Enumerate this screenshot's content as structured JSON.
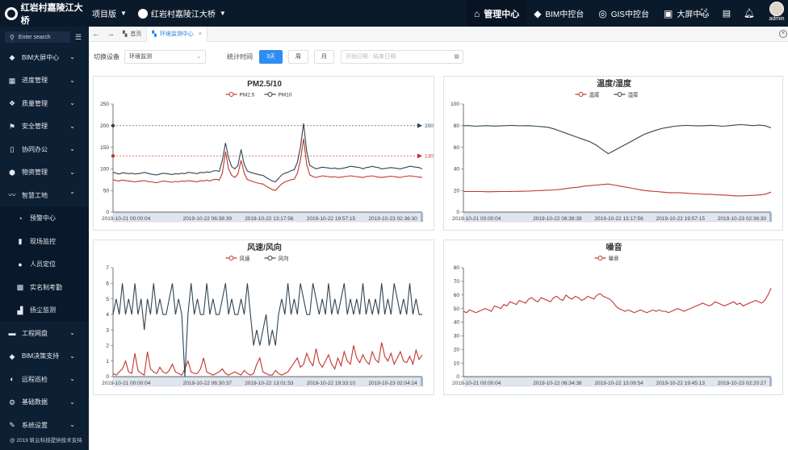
{
  "app": {
    "brand": "红岩村嘉陵江大桥",
    "project_switch": "项目版",
    "project_name": "红岩村嘉陵江大桥"
  },
  "nav": [
    {
      "label": "管理中心",
      "icon": "home-icon",
      "active": true
    },
    {
      "label": "BIM中控台",
      "icon": "cube-icon",
      "active": false
    },
    {
      "label": "GIS中控台",
      "icon": "globe-icon",
      "active": false
    },
    {
      "label": "大屏中心",
      "icon": "chart-screen-icon",
      "active": false
    }
  ],
  "user": {
    "name": "admin"
  },
  "sidebar": {
    "search_placeholder": "Enter search",
    "items": [
      {
        "label": "BIM大屏中心",
        "icon": "cube-icon",
        "expanded": false
      },
      {
        "label": "进度管理",
        "icon": "grid-icon",
        "expanded": false
      },
      {
        "label": "质量管理",
        "icon": "quality-icon",
        "expanded": false
      },
      {
        "label": "安全管理",
        "icon": "flag-icon",
        "expanded": false
      },
      {
        "label": "协同办公",
        "icon": "document-icon",
        "expanded": false
      },
      {
        "label": "物资管理",
        "icon": "material-icon",
        "expanded": false
      },
      {
        "label": "智慧工地",
        "icon": "pulse-icon",
        "expanded": true
      }
    ],
    "sub_items": [
      {
        "label": "预警中心",
        "icon": "alarm-icon"
      },
      {
        "label": "现场监控",
        "icon": "monitor-icon"
      },
      {
        "label": "人员定位",
        "icon": "person-icon"
      },
      {
        "label": "实名制考勤",
        "icon": "id-card-icon"
      },
      {
        "label": "扬尘监测",
        "icon": "dust-icon"
      }
    ],
    "items_after": [
      {
        "label": "工程网盘",
        "icon": "folder-icon"
      },
      {
        "label": "BIM决策支持",
        "icon": "cube-icon"
      },
      {
        "label": "远程巡检",
        "icon": "half-circle-icon"
      },
      {
        "label": "基础数据",
        "icon": "gear-icon"
      },
      {
        "label": "系统设置",
        "icon": "pencil-icon"
      }
    ],
    "copyright": "@ 2019 筑云科技提供技术支持"
  },
  "tabs": [
    {
      "label": "首页",
      "active": false
    },
    {
      "label": "环境监测中心",
      "active": true
    }
  ],
  "filters": {
    "device_label": "切换设备",
    "device_value": "环境监测",
    "period_label": "统计时间",
    "period_buttons": [
      "3天",
      "周",
      "月"
    ],
    "period_active": "3天",
    "date_placeholder": "开始日期 - 结束日期"
  },
  "chart_data": [
    {
      "type": "line",
      "title": "PM2.5/10",
      "series": [
        {
          "name": "PM2.5",
          "color": "#c23531",
          "values": [
            75,
            73,
            72,
            74,
            73,
            72,
            71,
            70,
            71,
            72,
            73,
            71,
            70,
            69,
            68,
            70,
            72,
            71,
            70,
            69,
            71,
            70,
            72,
            71,
            73,
            72,
            71,
            70,
            73,
            72,
            74,
            72,
            75,
            76,
            74,
            90,
            140,
            100,
            85,
            80,
            88,
            120,
            90,
            75,
            73,
            70,
            68,
            66,
            65,
            60,
            56,
            52,
            50,
            58,
            65,
            70,
            72,
            75,
            76,
            90,
            120,
            170,
            110,
            86,
            82,
            80,
            82,
            84,
            83,
            82,
            81,
            82,
            80,
            81,
            82,
            83,
            84,
            83,
            82,
            81,
            80,
            82,
            83,
            84,
            82,
            81,
            80,
            81,
            82,
            83,
            82,
            81,
            80,
            82,
            83,
            84,
            83,
            82,
            81,
            80
          ]
        },
        {
          "name": "PM10",
          "color": "#2f4554",
          "values": [
            92,
            90,
            88,
            91,
            90,
            89,
            90,
            88,
            89,
            90,
            92,
            90,
            88,
            87,
            86,
            88,
            90,
            89,
            88,
            87,
            89,
            88,
            90,
            89,
            92,
            91,
            90,
            89,
            92,
            91,
            93,
            92,
            95,
            96,
            94,
            120,
            160,
            125,
            105,
            100,
            108,
            145,
            110,
            95,
            92,
            90,
            88,
            86,
            85,
            80,
            76,
            72,
            70,
            78,
            86,
            90,
            92,
            96,
            98,
            115,
            150,
            205,
            140,
            108,
            104,
            100,
            102,
            104,
            103,
            102,
            101,
            102,
            100,
            101,
            102,
            104,
            106,
            105,
            104,
            103,
            100,
            103,
            104,
            106,
            104,
            103,
            100,
            101,
            102,
            103,
            102,
            101,
            100,
            102,
            104,
            106,
            105,
            104,
            103,
            100
          ]
        }
      ],
      "x_ticks": [
        "2019-10-21 00:00:04",
        "2019-10-22 06:38:39",
        "2019-10-22 13:17:56",
        "2019-10-22 19:57:15",
        "2019-10-23 02:36:30"
      ],
      "ylim": [
        0,
        250
      ],
      "y_ticks": [
        0,
        50,
        100,
        150,
        200,
        250
      ],
      "mark_lines": [
        {
          "value": 200,
          "color": "#2f4554"
        },
        {
          "value": 130,
          "color": "#c23531"
        }
      ],
      "legend": "top-center",
      "data_zoom": true
    },
    {
      "type": "line",
      "title": "温度/湿度",
      "series": [
        {
          "name": "温度",
          "color": "#c23531",
          "values": [
            19,
            19,
            19,
            19,
            18.8,
            18.9,
            19,
            19,
            19.1,
            19.2,
            19.3,
            19.5,
            19.8,
            20,
            20.3,
            20.5,
            21,
            21.8,
            22.5,
            23,
            24,
            24.5,
            25,
            25.5,
            26,
            25,
            24,
            23,
            22,
            21,
            20,
            19.5,
            19,
            18.5,
            18,
            18,
            17.8,
            17.5,
            17,
            16.8,
            16.5,
            16.5,
            16,
            15.8,
            15.5,
            15,
            15,
            15.2,
            15.5,
            15.8,
            16.5,
            18.5
          ]
        },
        {
          "name": "湿度",
          "color": "#2f4554",
          "values": [
            80,
            80,
            79.5,
            79.8,
            80,
            79.6,
            79.8,
            80,
            80.2,
            80,
            79.9,
            80,
            79.5,
            79,
            78.5,
            77,
            75,
            73,
            71,
            69,
            67,
            65,
            62,
            58,
            54,
            57,
            60,
            63,
            66,
            69,
            72,
            74,
            76,
            77.5,
            78.5,
            79.5,
            80,
            80.2,
            80,
            79.8,
            80,
            80.3,
            80,
            79.5,
            80,
            80.5,
            81,
            80.5,
            80,
            80.5,
            80,
            78
          ]
        }
      ],
      "x_ticks": [
        "2019-10-21 00:00:04",
        "2019-10-22 06:38:39",
        "2019-10-22 13:17:56",
        "2019-10-22 19:57:15",
        "2019-10-23 02:36:30"
      ],
      "ylim": [
        0,
        100
      ],
      "y_ticks": [
        0,
        20,
        40,
        60,
        80,
        100
      ],
      "legend": "top-center",
      "data_zoom": true
    },
    {
      "type": "line",
      "title": "风速/风向",
      "series": [
        {
          "name": "风速",
          "color": "#c23531",
          "values": [
            0.2,
            0.1,
            0.3,
            0.5,
            1.0,
            0.3,
            0.2,
            1.5,
            0.4,
            0.2,
            0.1,
            1.6,
            0.5,
            0.3,
            0.2,
            0.6,
            0.3,
            0.2,
            0.4,
            0.8,
            0.3,
            0.2,
            0.1,
            0.5,
            1.0,
            0.3,
            0.2,
            0.2,
            0.5,
            1.2,
            0.3,
            0.2,
            0.1,
            0.2,
            0.3,
            0.5,
            0.2,
            0.1,
            0.2,
            0.3,
            0.2,
            0.1,
            0.4,
            0.2,
            0.1,
            0.2,
            0.8,
            1.2,
            0.3,
            0.2,
            0.1,
            0.1,
            0.4,
            0.2,
            0.1,
            0.2,
            0.3,
            0.6,
            0.9,
            1.2,
            0.6,
            0.8,
            1.5,
            1.0,
            0.7,
            1.8,
            0.9,
            0.6,
            1.0,
            1.4,
            0.8,
            0.5,
            1.2,
            0.7,
            1.6,
            1.0,
            0.8,
            2.0,
            1.2,
            0.9,
            1.4,
            1.0,
            0.8,
            1.6,
            1.1,
            0.9,
            2.2,
            1.3,
            1.0,
            1.5,
            0.8,
            1.2,
            1.6,
            1.0,
            0.9,
            1.3,
            0.8,
            1.7,
            1.1,
            1.4
          ]
        },
        {
          "name": "风向",
          "color": "#2f4554",
          "values": [
            4,
            5,
            4,
            6,
            4,
            5,
            4,
            6,
            4,
            5,
            3,
            5,
            4,
            6,
            4,
            5,
            4,
            4,
            5,
            6,
            4,
            5,
            4,
            0,
            4,
            6,
            4,
            5,
            4,
            4,
            6,
            4,
            5,
            4,
            4,
            5,
            6,
            4,
            5,
            4,
            4,
            5,
            4,
            6,
            4,
            2,
            3,
            2,
            3,
            4,
            2,
            3,
            2,
            4,
            5,
            4,
            6,
            4,
            5,
            4,
            6,
            5,
            4,
            4,
            6,
            5,
            4,
            5,
            4,
            6,
            4,
            5,
            4,
            5,
            6,
            4,
            5,
            4,
            5,
            4,
            6,
            4,
            5,
            4,
            5,
            4,
            6,
            4,
            5,
            4,
            6,
            5,
            4,
            5,
            4,
            6,
            4,
            5,
            4,
            4
          ]
        }
      ],
      "x_ticks": [
        "2019-10-21 00:00:04",
        "2019-10-22 06:30:37",
        "2019-10-22 13:01:53",
        "2019-10-22 19:33:10",
        "2019-10-23 02:04:24"
      ],
      "ylim": [
        0,
        7
      ],
      "y_ticks": [
        0,
        1,
        2,
        3,
        4,
        5,
        6,
        7
      ],
      "legend": "top-center",
      "data_zoom": true
    },
    {
      "type": "line",
      "title": "噪音",
      "series": [
        {
          "name": "噪音",
          "color": "#c23531",
          "values": [
            48,
            47,
            49,
            48,
            47,
            48,
            49,
            50,
            49,
            48,
            52,
            51,
            50,
            53,
            52,
            55,
            54,
            53,
            56,
            55,
            54,
            57,
            58,
            56,
            55,
            58,
            57,
            56,
            55,
            58,
            59,
            57,
            56,
            60,
            58,
            57,
            59,
            58,
            56,
            57,
            59,
            58,
            57,
            60,
            61,
            59,
            58,
            57,
            55,
            52,
            50,
            49,
            48,
            49,
            48,
            47,
            48,
            49,
            48,
            47,
            48,
            49,
            48,
            49,
            48,
            48,
            47,
            48,
            49,
            50,
            49,
            48,
            49,
            50,
            51,
            52,
            53,
            54,
            53,
            52,
            53,
            55,
            54,
            53,
            52,
            53,
            54,
            55,
            53,
            54,
            52,
            53,
            54,
            55,
            56,
            55,
            54,
            56,
            60,
            65
          ]
        }
      ],
      "x_ticks": [
        "2019-10-21 00:00:04",
        "2019-10-22 06:34:38",
        "2019-10-22 13:09:54",
        "2019-10-22 19:45:13",
        "2019-10-23 02:20:27"
      ],
      "ylim": [
        0,
        80
      ],
      "y_ticks": [
        0,
        10,
        20,
        30,
        40,
        50,
        60,
        70,
        80
      ],
      "legend": "top-center",
      "data_zoom": true
    }
  ]
}
